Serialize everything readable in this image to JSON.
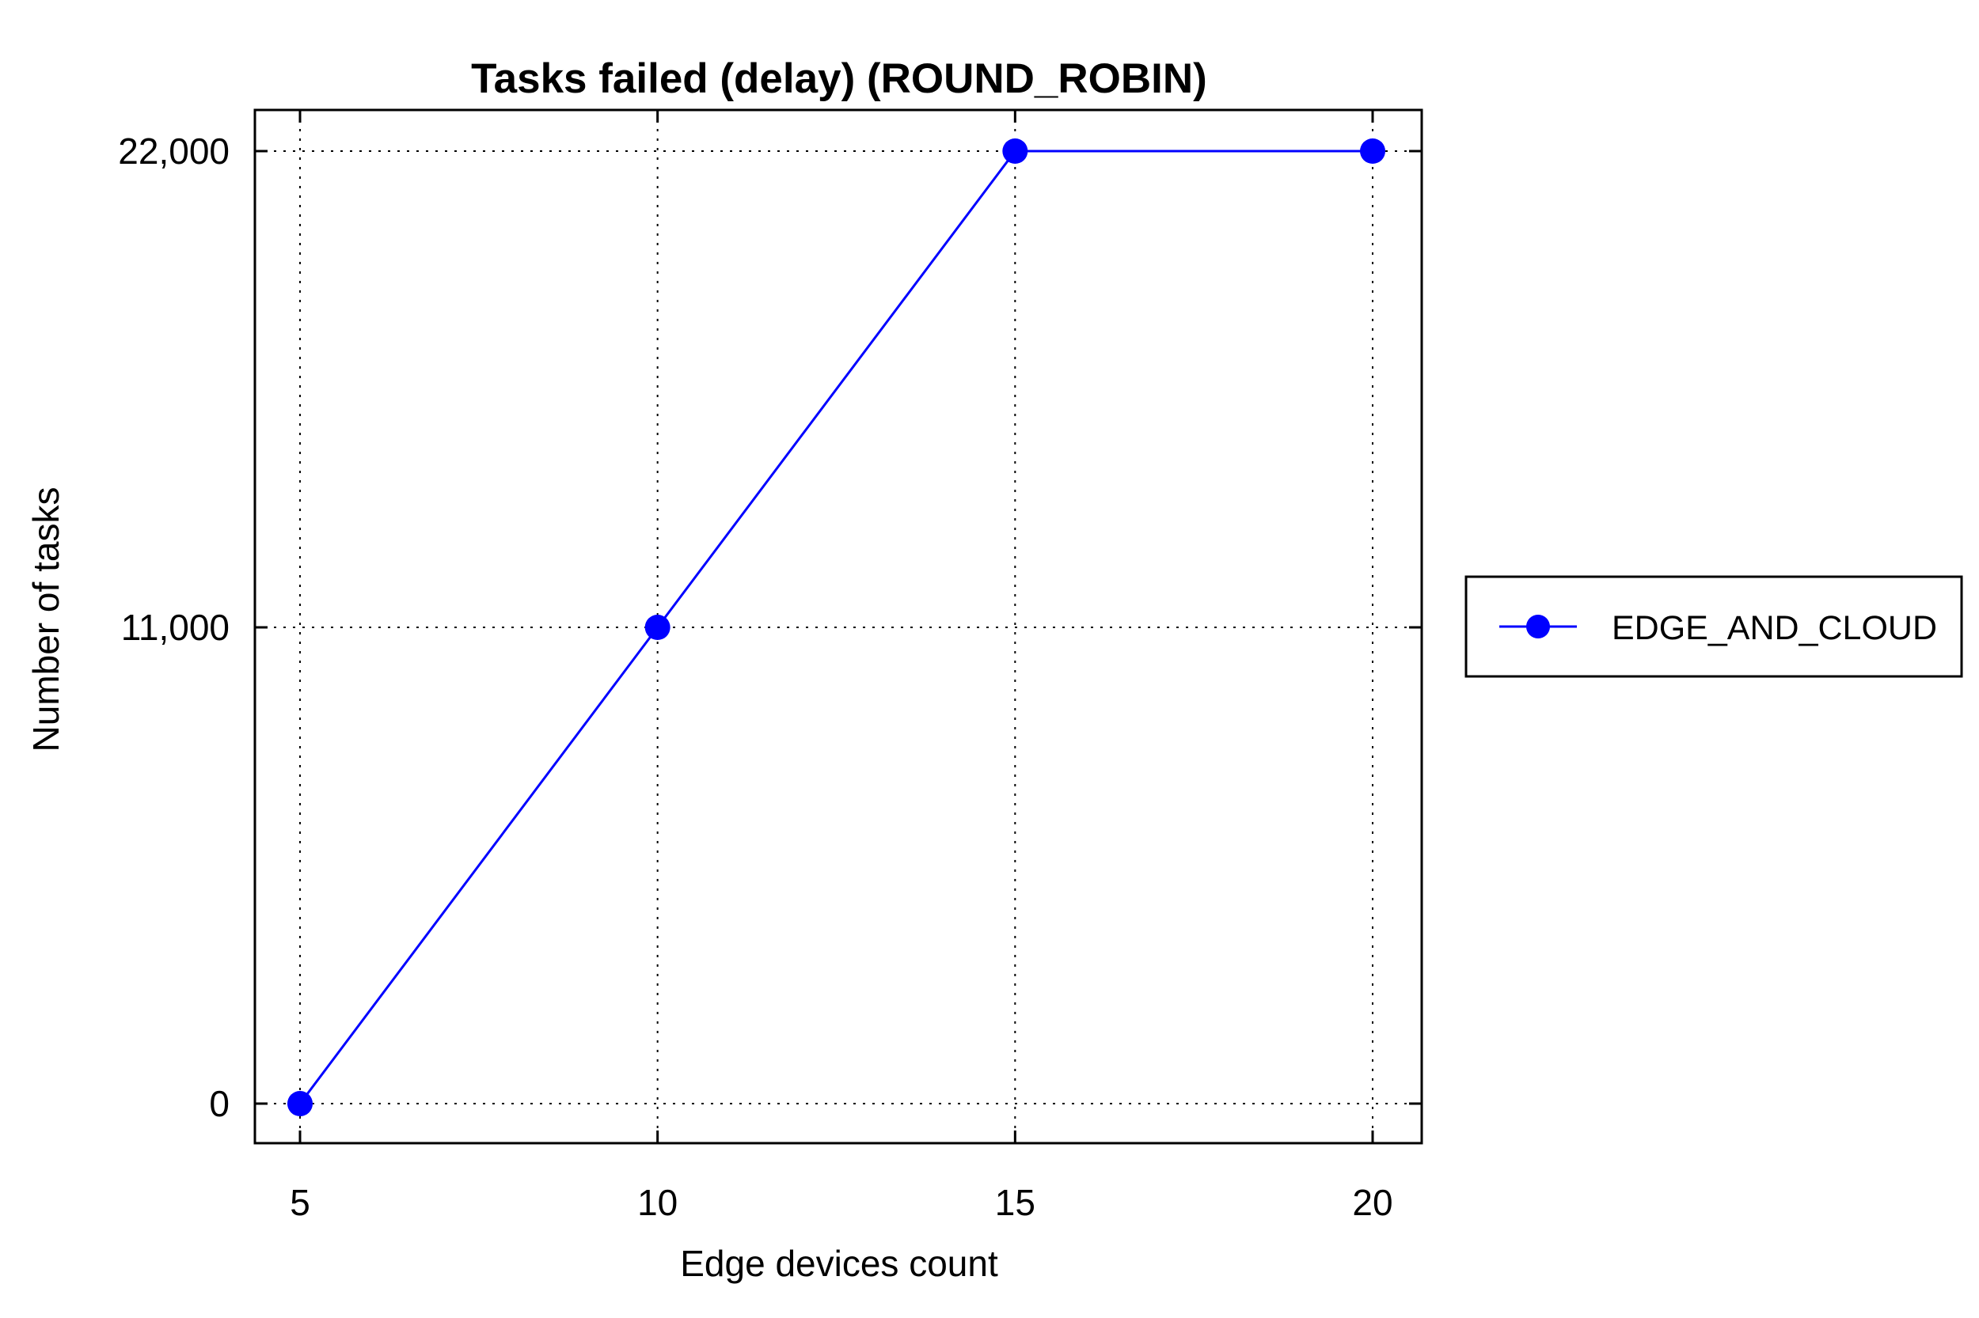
{
  "chart_data": {
    "type": "line",
    "title": "Tasks failed (delay) (ROUND_ROBIN)",
    "xlabel": "Edge devices count",
    "ylabel": "Number of tasks",
    "x": [
      5,
      10,
      15,
      20
    ],
    "x_ticks": [
      "5",
      "10",
      "15",
      "20"
    ],
    "y_ticks": [
      {
        "value": 0,
        "label": "0"
      },
      {
        "value": 11000,
        "label": "11,000"
      },
      {
        "value": 22000,
        "label": "22,000"
      }
    ],
    "series": [
      {
        "name": "EDGE_AND_CLOUD",
        "values": [
          0,
          11000,
          22000,
          22000
        ],
        "color": "#0000ff"
      }
    ],
    "grid": true,
    "legend_position": "right"
  }
}
